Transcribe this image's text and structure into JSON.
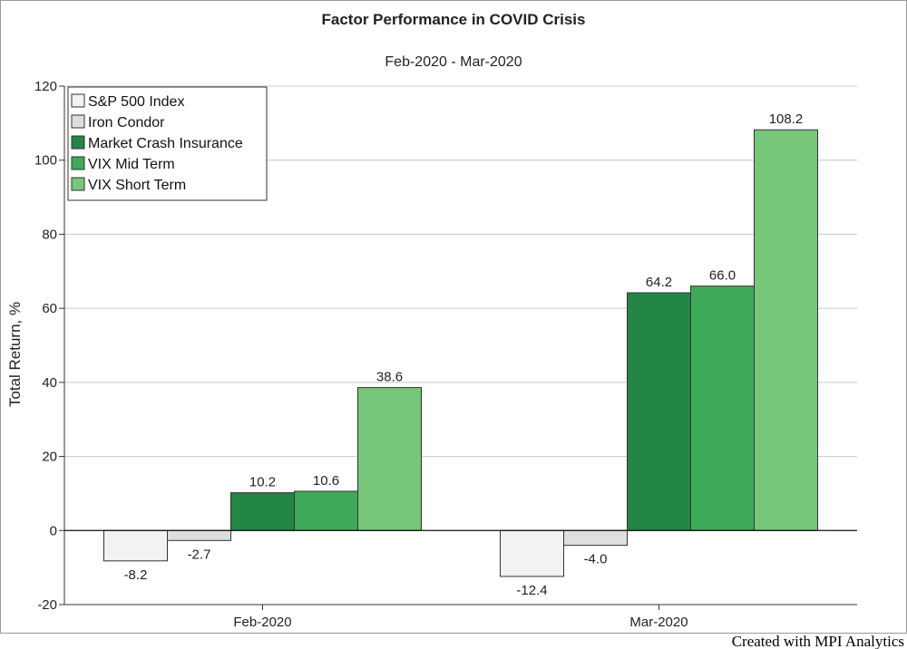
{
  "chart_data": {
    "type": "bar",
    "title": "Factor Performance in COVID Crisis",
    "subtitle": "Feb-2020 - Mar-2020",
    "ylabel": "Total Return, %",
    "xlabel": "",
    "ylim": [
      -20,
      120
    ],
    "yticks": [
      -20,
      0,
      20,
      40,
      60,
      80,
      100,
      120
    ],
    "grid": true,
    "legend_position": "top-left",
    "categories": [
      "Feb-2020",
      "Mar-2020"
    ],
    "series": [
      {
        "name": "S&P 500 Index",
        "values": [
          -8.2,
          -12.4
        ],
        "labels": [
          "-8.2",
          "-12.4"
        ],
        "color": "#f2f2f2"
      },
      {
        "name": "Iron Condor",
        "values": [
          -2.7,
          -4.0
        ],
        "labels": [
          "-2.7",
          "-4.0"
        ],
        "color": "#dedede"
      },
      {
        "name": "Market Crash Insurance",
        "values": [
          10.2,
          64.2
        ],
        "labels": [
          "10.2",
          "64.2"
        ],
        "color": "#238645"
      },
      {
        "name": "VIX Mid Term",
        "values": [
          10.6,
          66.0
        ],
        "labels": [
          "10.6",
          "66.0"
        ],
        "color": "#3fa95a"
      },
      {
        "name": "VIX Short Term",
        "values": [
          38.6,
          108.2
        ],
        "labels": [
          "38.6",
          "108.2"
        ],
        "color": "#78c679"
      }
    ]
  },
  "footer": {
    "credit": "Created with MPI Analytics"
  }
}
